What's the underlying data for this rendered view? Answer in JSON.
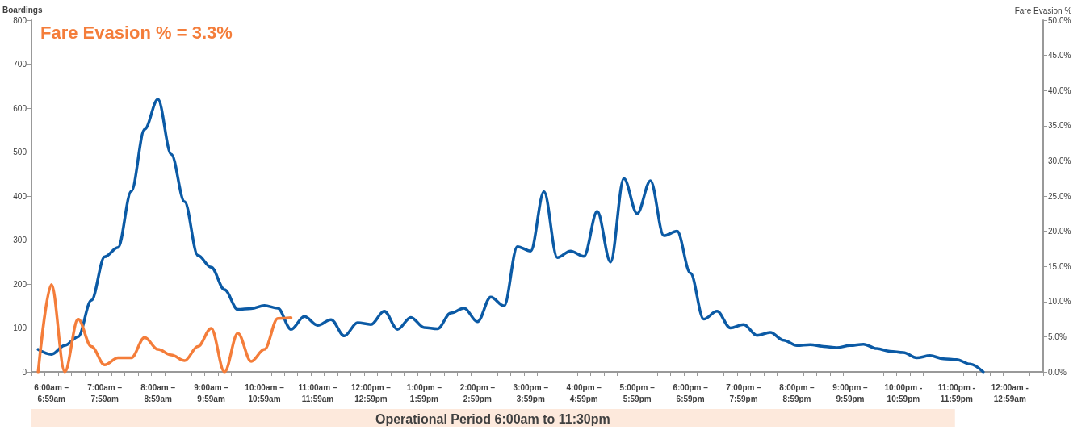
{
  "chart_data": {
    "type": "line",
    "ylabel": "Boardings",
    "y2label": "Fare Evasion %",
    "annotations": [
      "Fare Evasion % = 3.3%",
      "Operational Period 6:00am to 11:30pm"
    ],
    "categories": [
      null,
      "6:00am – 6:59am",
      null,
      null,
      null,
      "7:00am – 7:59am",
      null,
      null,
      null,
      "8:00am – 8:59am",
      null,
      null,
      null,
      "9:00am – 9:59am",
      null,
      null,
      null,
      "10:00am – 10:59am",
      null,
      null,
      null,
      "11:00am – 11:59am",
      null,
      null,
      null,
      "12:00pm – 12:59pm",
      null,
      null,
      null,
      "1:00pm – 1:59pm",
      null,
      null,
      null,
      "2:00pm – 2:59pm",
      null,
      null,
      null,
      "3:00pm – 3:59pm",
      null,
      null,
      null,
      "4:00pm – 4:59pm",
      null,
      null,
      null,
      "5:00pm – 5:59pm",
      null,
      null,
      null,
      "6:00pm – 6:59pm",
      null,
      null,
      null,
      "7:00pm – 7:59pm",
      null,
      null,
      null,
      "8:00pm – 8:59pm",
      null,
      null,
      null,
      "9:00pm – 9:59pm",
      null,
      null,
      null,
      "10:00pm - 10:59pm",
      null,
      null,
      null,
      "11:00pm - 11:59pm",
      null,
      null,
      null,
      "12:00am - 12:59am",
      null,
      null
    ],
    "ylim": [
      0,
      800
    ],
    "yticks": [
      0,
      100,
      200,
      300,
      400,
      500,
      600,
      700,
      800
    ],
    "y2lim": [
      0,
      50
    ],
    "y2ticks": [
      {
        "value": 0,
        "label": "0.0%"
      },
      {
        "value": 5,
        "label": "5.0%"
      },
      {
        "value": 10,
        "label": "10.0%"
      },
      {
        "value": 15,
        "label": "15.0%"
      },
      {
        "value": 20,
        "label": "20.0%"
      },
      {
        "value": 25,
        "label": "25.0%"
      },
      {
        "value": 30,
        "label": "30.0%"
      },
      {
        "value": 35,
        "label": "35.0%"
      },
      {
        "value": 40,
        "label": "40.0%"
      },
      {
        "value": 45,
        "label": "45.0%"
      },
      {
        "value": 50,
        "label": "50.0%"
      }
    ],
    "grid": false,
    "marker": "none",
    "line_style": "solid",
    "series": [
      {
        "color": "#0b5aa5",
        "values": [
          51,
          40,
          60,
          80,
          163,
          262,
          283,
          411,
          552,
          620,
          495,
          387,
          265,
          238,
          187,
          142,
          144,
          151,
          145,
          97,
          126,
          106,
          119,
          82,
          112,
          108,
          138,
          97,
          124,
          101,
          98,
          134,
          145,
          114,
          170,
          150,
          285,
          275,
          410,
          260,
          275,
          263,
          365,
          250,
          440,
          360,
          435,
          310,
          320,
          225,
          120,
          138,
          100,
          108,
          83,
          90,
          72,
          60,
          62,
          58,
          55,
          60,
          63,
          53,
          47,
          44,
          32,
          37,
          30,
          28,
          18,
          0,
          null,
          null,
          null,
          null
        ]
      },
      {
        "color": "#f47d3a",
        "axis": "y2",
        "values": [
          0,
          12.4,
          0,
          7.5,
          3.6,
          1.0,
          2.0,
          2.0,
          4.9,
          3.2,
          2.4,
          1.6,
          3.6,
          6.2,
          0,
          5.5,
          1.5,
          3.2,
          7.6,
          7.7,
          null,
          null,
          null,
          null,
          null,
          null,
          null,
          null,
          null,
          null,
          null,
          null,
          null,
          null,
          null,
          null,
          null,
          null,
          null,
          null,
          null,
          null,
          null,
          null,
          null,
          null,
          null,
          null,
          null,
          null,
          null,
          null,
          null,
          null,
          null,
          null,
          null,
          null,
          null,
          null,
          null,
          null,
          null,
          null,
          null,
          null,
          null,
          null,
          null,
          null,
          null,
          null,
          null,
          null,
          null,
          null
        ]
      }
    ]
  }
}
